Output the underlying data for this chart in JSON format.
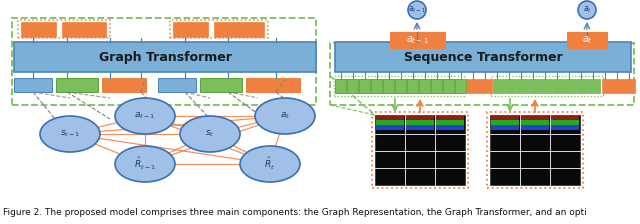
{
  "fig_width": 6.4,
  "fig_height": 2.24,
  "dpi": 100,
  "caption": "Figure 2. The proposed model comprises three main components: the Graph Representation, the Graph Transformer, and an opti",
  "caption_fontsize": 6.5,
  "colors": {
    "blue_box": "#7ab0d8",
    "blue_box_edge": "#4a85b8",
    "orange_box": "#f08040",
    "green_box": "#7abf5a",
    "green_box_edge": "#5a9f3a",
    "node_fill": "#a0c0e8",
    "node_edge": "#3a70b0",
    "orange_arrow": "#f08040",
    "blue_arrow": "#4a85b8",
    "green_dashed": "#7abf5a",
    "orange_dashed": "#f08040",
    "gray_dashed": "#808080",
    "bg": "#ffffff"
  }
}
